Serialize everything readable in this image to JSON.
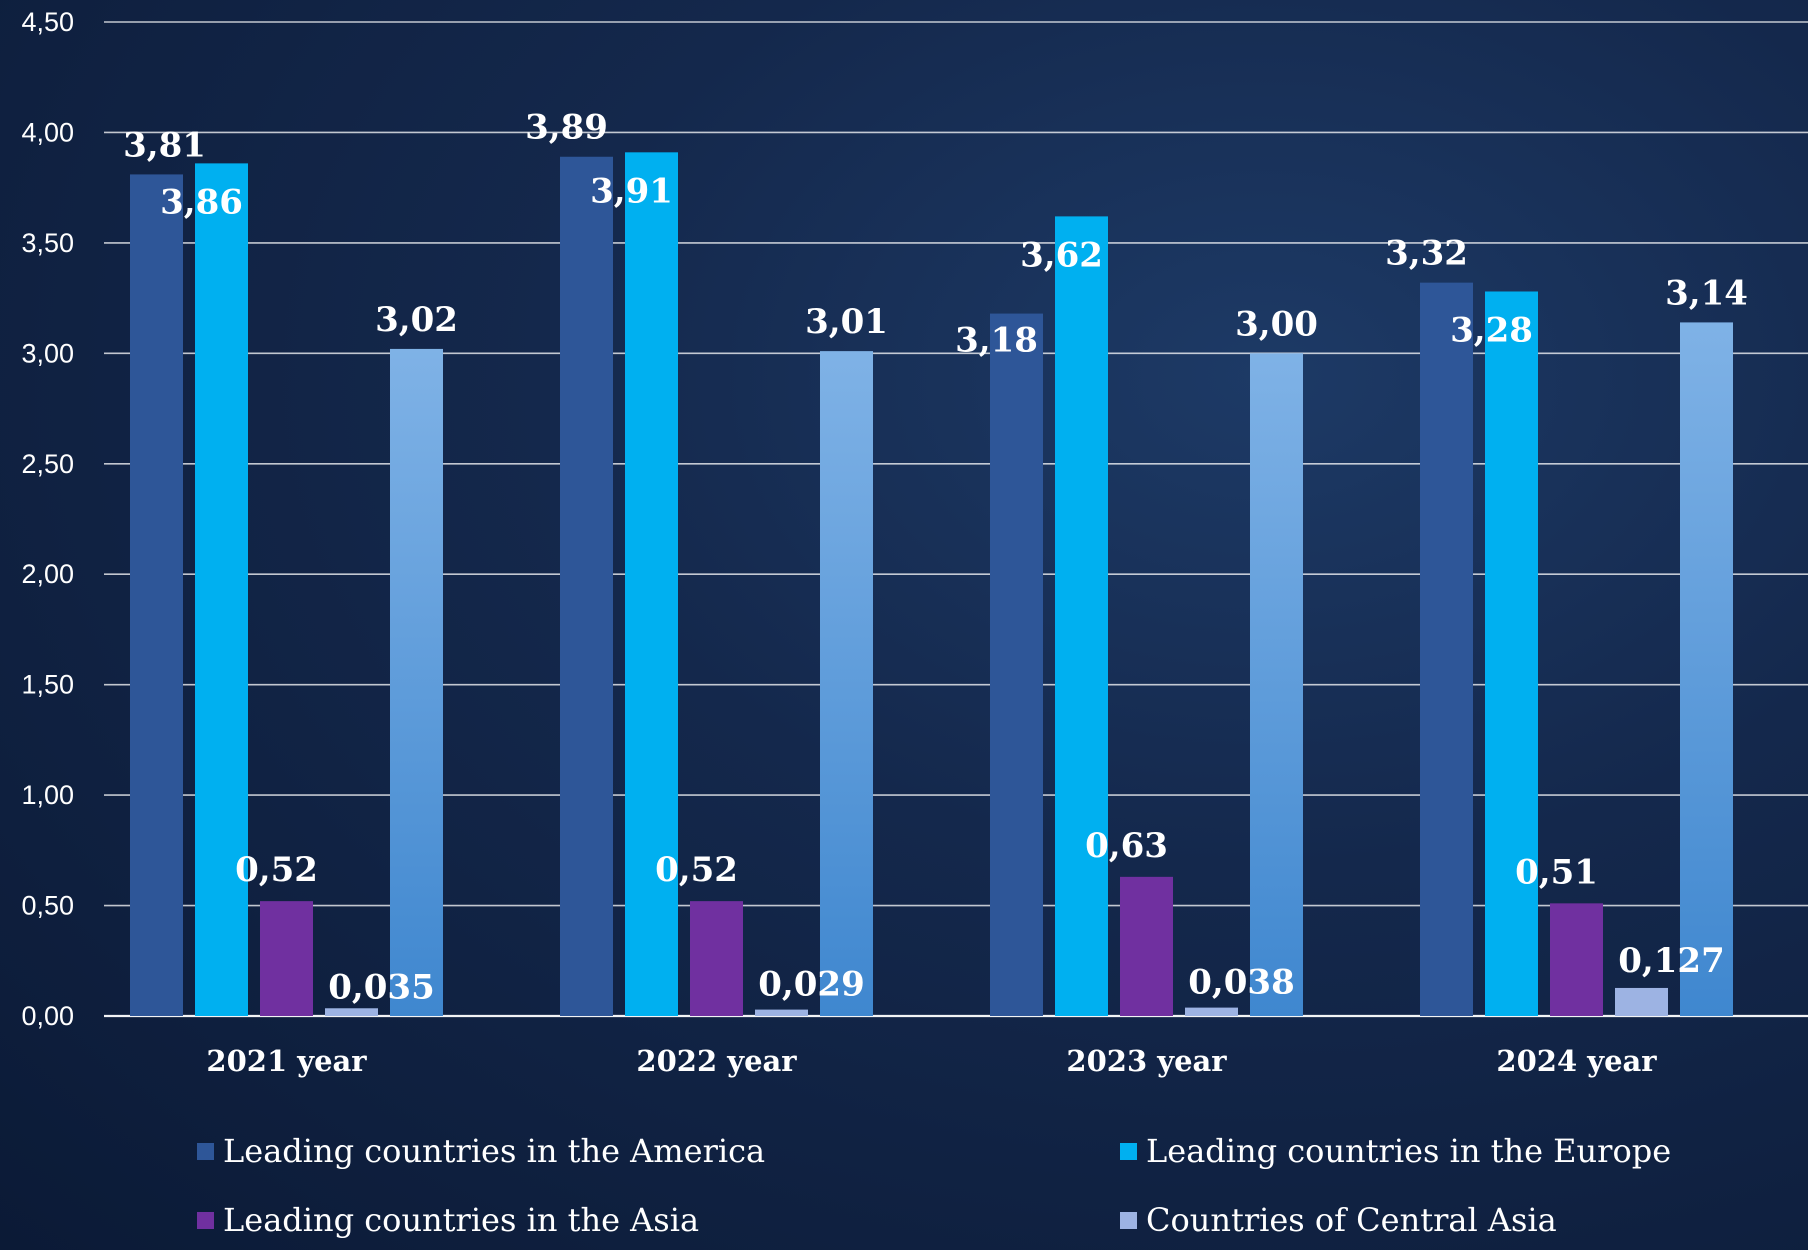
{
  "chart_data": {
    "type": "bar",
    "categories": [
      "2021 year",
      "2022 year",
      "2023 year",
      "2024 year"
    ],
    "y_ticks": [
      "0,00",
      "0,50",
      "1,00",
      "1,50",
      "2,00",
      "2,50",
      "3,00",
      "3,50",
      "4,00",
      "4,50"
    ],
    "ylim": [
      0,
      4.5
    ],
    "grid": true,
    "legend_position": "bottom",
    "series": [
      {
        "name": "Leading countries in the America",
        "color": "#2e5698",
        "values": [
          3.81,
          3.89,
          3.18,
          3.32
        ],
        "labels": [
          "3,81",
          "3,89",
          "3,18",
          "3,32"
        ]
      },
      {
        "name": "Leading countries in the Europe",
        "color": "#00b0f0",
        "values": [
          3.86,
          3.91,
          3.62,
          3.28
        ],
        "labels": [
          "3,86",
          "3,91",
          "3,62",
          "3,28"
        ]
      },
      {
        "name": "Leading countries in the Asia",
        "color": "#7030a0",
        "values": [
          0.52,
          0.52,
          0.63,
          0.51
        ],
        "labels": [
          "0,52",
          "0,52",
          "0,63",
          "0,51"
        ]
      },
      {
        "name": "Countries of Central Asia",
        "color": "#9db3e3",
        "values": [
          0.035,
          0.029,
          0.038,
          0.127
        ],
        "labels": [
          "0,035",
          "0,029",
          "0,038",
          "0,127"
        ]
      },
      {
        "name": "",
        "color": "#6aa8e6",
        "values": [
          3.02,
          3.01,
          3.0,
          3.14
        ],
        "labels": [
          "3,02",
          "3,01",
          "3,00",
          "3,14"
        ]
      }
    ]
  }
}
